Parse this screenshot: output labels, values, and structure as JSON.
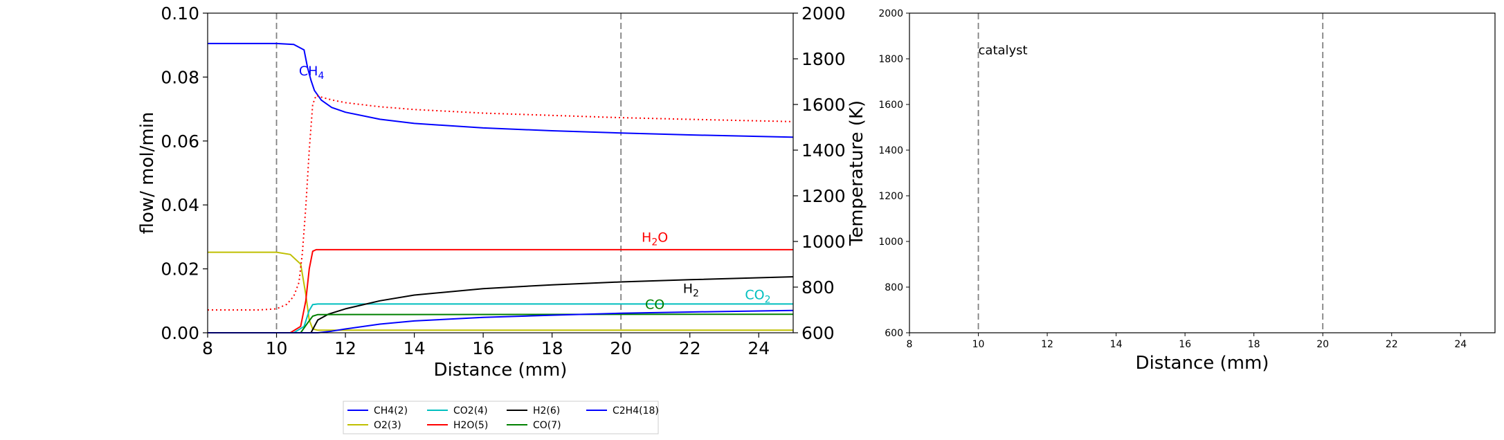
{
  "chart_data": [
    {
      "type": "line",
      "xlabel": "Distance (mm)",
      "ylabel": "flow/ mol/min",
      "y2label": "Temperature (K)",
      "xlim": [
        8,
        25
      ],
      "ylim": [
        0,
        0.1
      ],
      "y2lim": [
        600,
        2000
      ],
      "xticks": [
        "8",
        "10",
        "12",
        "14",
        "16",
        "18",
        "20",
        "22",
        "24"
      ],
      "yticks": [
        "0.00",
        "0.02",
        "0.04",
        "0.06",
        "0.08",
        "0.10"
      ],
      "y2ticks": [
        "600",
        "800",
        "1000",
        "1200",
        "1400",
        "1600",
        "1800",
        "2000"
      ],
      "vlines": [
        10,
        20
      ],
      "grid": false,
      "legend": {
        "placement": "below",
        "columns": 4,
        "entries": [
          "CH4(2)",
          "O2(3)",
          "CO2(4)",
          "H2O(5)",
          "H2(6)",
          "CO(7)",
          "C2H4(18)"
        ]
      },
      "annotations": [
        {
          "base": "CH",
          "sub": "4",
          "rest": "",
          "x": 10.65,
          "y": 0.0805,
          "color": "#0000ff"
        },
        {
          "base": "H",
          "sub": "2",
          "rest": "O",
          "x": 20.6,
          "y": 0.0285,
          "color": "#ff0000"
        },
        {
          "base": "H",
          "sub": "2",
          "rest": "",
          "x": 21.8,
          "y": 0.0125,
          "color": "#000000"
        },
        {
          "base": "CO",
          "sub": "2",
          "rest": "",
          "x": 23.6,
          "y": 0.0105,
          "color": "#00bfbf"
        },
        {
          "base": "CO",
          "sub": "",
          "rest": "",
          "x": 20.7,
          "y": 0.0075,
          "color": "#008000"
        }
      ],
      "series": [
        {
          "name": "CH4(2)",
          "color": "#0000ff",
          "axis": "left",
          "style": "solid",
          "x": [
            8,
            10,
            10.5,
            10.8,
            10.9,
            11.0,
            11.1,
            11.3,
            11.6,
            12,
            13,
            14,
            16,
            18,
            20,
            22,
            25
          ],
          "y": [
            0.0905,
            0.0905,
            0.0902,
            0.0885,
            0.083,
            0.079,
            0.0758,
            0.0728,
            0.0705,
            0.069,
            0.0668,
            0.0655,
            0.0641,
            0.0632,
            0.0625,
            0.0619,
            0.0612
          ]
        },
        {
          "name": "O2(3)",
          "color": "#bfbf00",
          "axis": "left",
          "style": "solid",
          "x": [
            8,
            10,
            10.4,
            10.7,
            10.85,
            10.95,
            11.05,
            11.2,
            25
          ],
          "y": [
            0.0252,
            0.0252,
            0.0245,
            0.0215,
            0.012,
            0.004,
            0.0012,
            0.0008,
            0.0008
          ]
        },
        {
          "name": "CO2(4)",
          "color": "#00bfbf",
          "axis": "left",
          "style": "solid",
          "x": [
            8,
            10.5,
            10.8,
            10.95,
            11.05,
            11.2,
            25
          ],
          "y": [
            0.0,
            0.0,
            0.002,
            0.007,
            0.0088,
            0.009,
            0.009
          ]
        },
        {
          "name": "H2O(5)",
          "color": "#ff0000",
          "axis": "left",
          "style": "solid",
          "x": [
            8,
            10.4,
            10.7,
            10.85,
            10.95,
            11.05,
            11.15,
            25
          ],
          "y": [
            0.0,
            0.0,
            0.002,
            0.01,
            0.02,
            0.0255,
            0.026,
            0.026
          ]
        },
        {
          "name": "H2(6)",
          "color": "#000000",
          "axis": "left",
          "style": "solid",
          "x": [
            8,
            11.0,
            11.2,
            11.5,
            12,
            13,
            14,
            16,
            18,
            20,
            22,
            25
          ],
          "y": [
            0.0,
            0.0,
            0.004,
            0.0058,
            0.0075,
            0.01,
            0.0118,
            0.0138,
            0.015,
            0.0159,
            0.0166,
            0.0175
          ]
        },
        {
          "name": "CO(7)",
          "color": "#008000",
          "axis": "left",
          "style": "solid",
          "x": [
            8,
            10.7,
            10.9,
            11.05,
            11.2,
            25
          ],
          "y": [
            0.0,
            0.0,
            0.003,
            0.0052,
            0.0057,
            0.0058
          ]
        },
        {
          "name": "C2H4(18)",
          "color": "#0000ff",
          "axis": "left",
          "style": "solid",
          "x": [
            8,
            11.2,
            11.6,
            12,
            13,
            14,
            16,
            18,
            20,
            22,
            25
          ],
          "y": [
            0.0,
            0.0,
            0.0005,
            0.0012,
            0.0027,
            0.0037,
            0.0048,
            0.0055,
            0.0061,
            0.0065,
            0.007
          ]
        },
        {
          "name": "",
          "color": "#ff0000",
          "axis": "right",
          "style": "dotted",
          "x": [
            8,
            9.5,
            10,
            10.3,
            10.5,
            10.65,
            10.75,
            10.85,
            10.95,
            11.05,
            11.15,
            11.3,
            11.6,
            12,
            13,
            14,
            16,
            18,
            20,
            22,
            25
          ],
          "y": [
            700,
            700,
            705,
            725,
            760,
            820,
            950,
            1150,
            1400,
            1600,
            1640,
            1632,
            1620,
            1608,
            1590,
            1578,
            1562,
            1552,
            1542,
            1535,
            1525
          ]
        }
      ]
    },
    {
      "type": "line",
      "xlabel": "Distance (mm)",
      "ylabel": "",
      "xlim": [
        8,
        25
      ],
      "ylim": [
        600,
        2000
      ],
      "xticks": [
        "8",
        "10",
        "12",
        "14",
        "16",
        "18",
        "20",
        "22",
        "24"
      ],
      "yticks": [
        "600",
        "800",
        "1000",
        "1200",
        "1400",
        "1600",
        "1800",
        "2000"
      ],
      "vlines": [
        10,
        20
      ],
      "grid": false,
      "annotations": [
        {
          "text": "catalyst",
          "x": 10.0,
          "y": 1820
        }
      ],
      "series": []
    }
  ]
}
